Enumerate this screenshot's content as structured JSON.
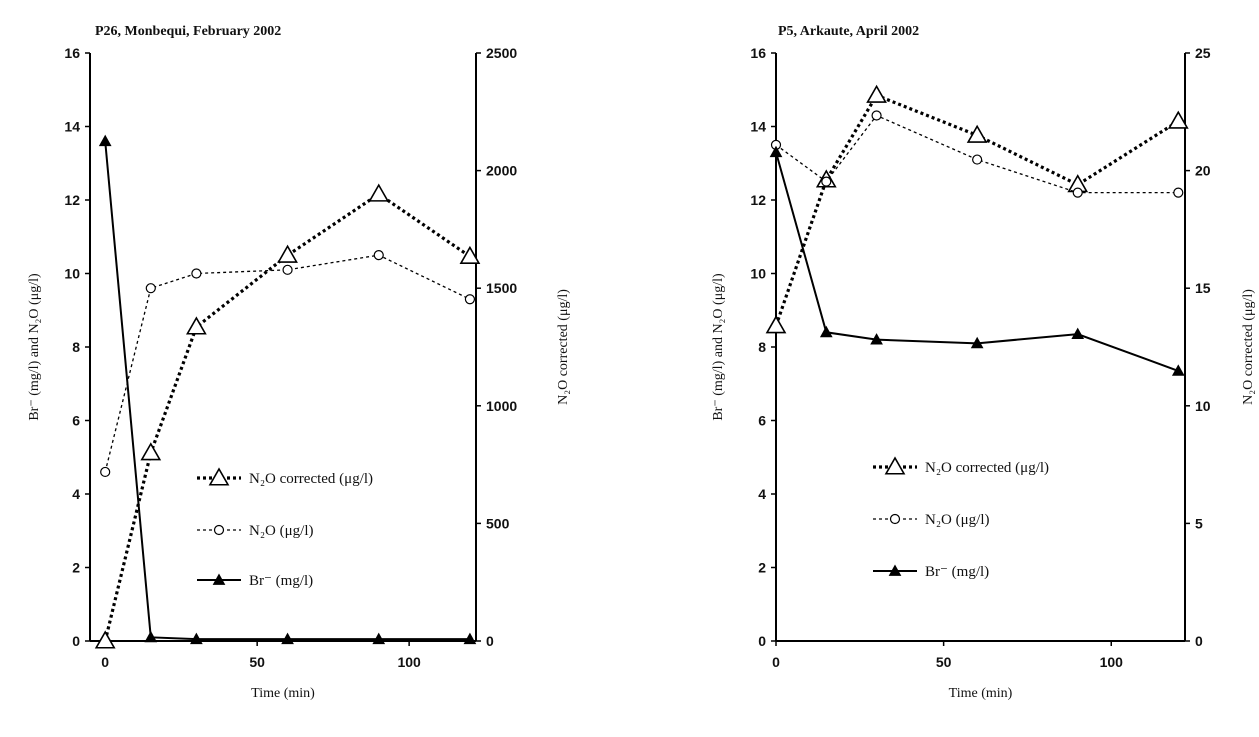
{
  "chart_data": [
    {
      "type": "line",
      "title": "P26, Monbequi, February 2002",
      "xlabel": "Time (min)",
      "ylabel_left": "Br⁻ (mg/l) and N₂O (μg/l)",
      "ylabel_right": "N₂O corrected (μg/l)",
      "xlim": [
        -5,
        122
      ],
      "xticks": [
        0,
        50,
        100
      ],
      "ylim_left": [
        0,
        16
      ],
      "yticks_left": [
        0,
        2,
        4,
        6,
        8,
        10,
        12,
        14,
        16
      ],
      "ylim_right": [
        0,
        2500
      ],
      "yticks_right": [
        0,
        500,
        1000,
        1500,
        2000,
        2500
      ],
      "legend_position": "lower-right",
      "series": [
        {
          "name": "N₂O corrected (μg/l)",
          "axis": "right",
          "marker": "triangle-open",
          "line": "dotted-bold",
          "x": [
            0,
            15,
            30,
            60,
            90,
            120
          ],
          "y": [
            0,
            800,
            1335,
            1640,
            1900,
            1635
          ]
        },
        {
          "name": "N₂O (μg/l)",
          "axis": "left",
          "marker": "circle-open",
          "line": "dotted",
          "x": [
            0,
            15,
            30,
            60,
            90,
            120
          ],
          "y": [
            4.6,
            9.6,
            10.0,
            10.1,
            10.5,
            9.3
          ]
        },
        {
          "name": "Br⁻ (mg/l)",
          "axis": "left",
          "marker": "triangle-filled",
          "line": "solid",
          "x": [
            0,
            15,
            30,
            60,
            90,
            120
          ],
          "y": [
            13.6,
            0.1,
            0.05,
            0.05,
            0.05,
            0.05
          ]
        }
      ]
    },
    {
      "type": "line",
      "title": "P5, Arkaute, April 2002",
      "xlabel": "Time (min)",
      "ylabel_left": "Br⁻ (mg/l) and N₂O (μg/l)",
      "ylabel_right": "N₂O corrected (μg/l)",
      "xlim": [
        0,
        122
      ],
      "xticks": [
        0,
        50,
        100
      ],
      "ylim_left": [
        0,
        16
      ],
      "yticks_left": [
        0,
        2,
        4,
        6,
        8,
        10,
        12,
        14,
        16
      ],
      "ylim_right": [
        0,
        25
      ],
      "yticks_right": [
        0,
        5,
        10,
        15,
        20,
        25
      ],
      "legend_position": "lower-right",
      "series": [
        {
          "name": "N₂O corrected (μg/l)",
          "axis": "right",
          "marker": "triangle-open",
          "line": "dotted-bold",
          "x": [
            0,
            15,
            30,
            60,
            90,
            120
          ],
          "y": [
            13.4,
            19.6,
            23.2,
            21.5,
            19.4,
            22.1
          ]
        },
        {
          "name": "N₂O (μg/l)",
          "axis": "left",
          "marker": "circle-open",
          "line": "dotted",
          "x": [
            0,
            15,
            30,
            60,
            90,
            120
          ],
          "y": [
            13.5,
            12.5,
            14.3,
            13.1,
            12.2,
            12.2
          ]
        },
        {
          "name": "Br⁻ (mg/l)",
          "axis": "left",
          "marker": "triangle-filled",
          "line": "solid",
          "x": [
            0,
            15,
            30,
            60,
            90,
            120
          ],
          "y": [
            13.3,
            8.4,
            8.2,
            8.1,
            8.35,
            7.35
          ]
        }
      ]
    }
  ]
}
